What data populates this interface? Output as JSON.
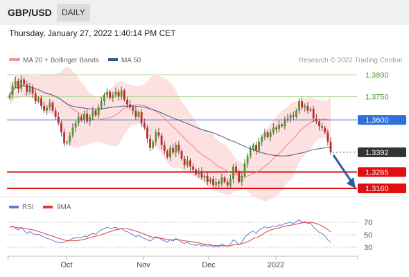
{
  "header": {
    "symbol": "GBP/USD",
    "period": "DAILY",
    "timestamp": "Thursday, January 27, 2022 1:40:14 PM CET"
  },
  "legend": {
    "ma20_bb": "MA 20 + Bollinger Bands",
    "ma50": "MA 50",
    "copyright": "Research © 2022 Trading Central",
    "rsi": "RSI",
    "ma9": "9MA"
  },
  "colors": {
    "up": "#4c9a2a",
    "down": "#c62828",
    "bb_fill": "#fde0e0",
    "ma20": "#f08080",
    "ma50": "#3d5a8a",
    "rsi": "#5b7fd6",
    "ma9": "#e53935",
    "arrow": "#2a5ba8"
  },
  "chart_data": {
    "type": "candlestick",
    "title": "GBP/USD",
    "x_labels": [
      "Oct",
      "Nov",
      "Dec",
      "2022"
    ],
    "y_range": [
      1.312,
      1.395
    ],
    "levels": [
      {
        "label": "1.3890",
        "value": 1.389,
        "kind": "resistance"
      },
      {
        "label": "1.3750",
        "value": 1.375,
        "kind": "resistance"
      },
      {
        "label": "1.3600",
        "value": 1.36,
        "kind": "pivot"
      },
      {
        "label": "1.3392",
        "value": 1.3392,
        "kind": "last"
      },
      {
        "label": "1.3265",
        "value": 1.3265,
        "kind": "support"
      },
      {
        "label": "1.3160",
        "value": 1.316,
        "kind": "support"
      }
    ],
    "close": [
      1.376,
      1.382,
      1.385,
      1.38,
      1.386,
      1.383,
      1.378,
      1.381,
      1.377,
      1.372,
      1.374,
      1.369,
      1.366,
      1.368,
      1.371,
      1.366,
      1.362,
      1.358,
      1.352,
      1.345,
      1.346,
      1.35,
      1.355,
      1.358,
      1.362,
      1.36,
      1.364,
      1.359,
      1.362,
      1.366,
      1.363,
      1.368,
      1.372,
      1.376,
      1.378,
      1.374,
      1.376,
      1.378,
      1.375,
      1.379,
      1.373,
      1.37,
      1.368,
      1.366,
      1.362,
      1.365,
      1.358,
      1.355,
      1.348,
      1.342,
      1.346,
      1.352,
      1.35,
      1.344,
      1.34,
      1.336,
      1.342,
      1.339,
      1.344,
      1.34,
      1.335,
      1.331,
      1.334,
      1.33,
      1.328,
      1.325,
      1.327,
      1.323,
      1.324,
      1.32,
      1.322,
      1.318,
      1.32,
      1.319,
      1.323,
      1.32,
      1.318,
      1.322,
      1.33,
      1.327,
      1.32,
      1.324,
      1.332,
      1.337,
      1.341,
      1.344,
      1.34,
      1.346,
      1.349,
      1.352,
      1.349,
      1.352,
      1.355,
      1.354,
      1.357,
      1.356,
      1.36,
      1.361,
      1.363,
      1.362,
      1.366,
      1.372,
      1.368,
      1.369,
      1.366,
      1.367,
      1.361,
      1.359,
      1.356,
      1.355,
      1.352,
      1.346,
      1.3392
    ],
    "rsi_values": [
      62,
      64,
      60,
      58,
      62,
      57,
      52,
      55,
      52,
      50,
      51,
      48,
      46,
      44,
      43,
      41,
      39,
      38,
      37,
      38,
      40,
      42,
      44,
      45,
      46,
      45,
      48,
      47,
      50,
      52,
      51,
      55,
      58,
      60,
      62,
      60,
      61,
      62,
      59,
      60,
      56,
      55,
      52,
      50,
      47,
      49,
      46,
      44,
      42,
      40,
      43,
      47,
      45,
      42,
      40,
      38,
      42,
      40,
      44,
      41,
      38,
      36,
      38,
      35,
      34,
      33,
      35,
      32,
      34,
      31,
      33,
      30,
      32,
      31,
      35,
      33,
      31,
      35,
      42,
      39,
      34,
      38,
      46,
      50,
      54,
      56,
      52,
      58,
      60,
      63,
      61,
      62,
      64,
      63,
      66,
      65,
      68,
      69,
      70,
      68,
      71,
      74,
      70,
      71,
      68,
      69,
      62,
      58,
      54,
      52,
      48,
      42,
      38
    ],
    "rsi_ticks": [
      "70",
      "50",
      "30"
    ]
  }
}
